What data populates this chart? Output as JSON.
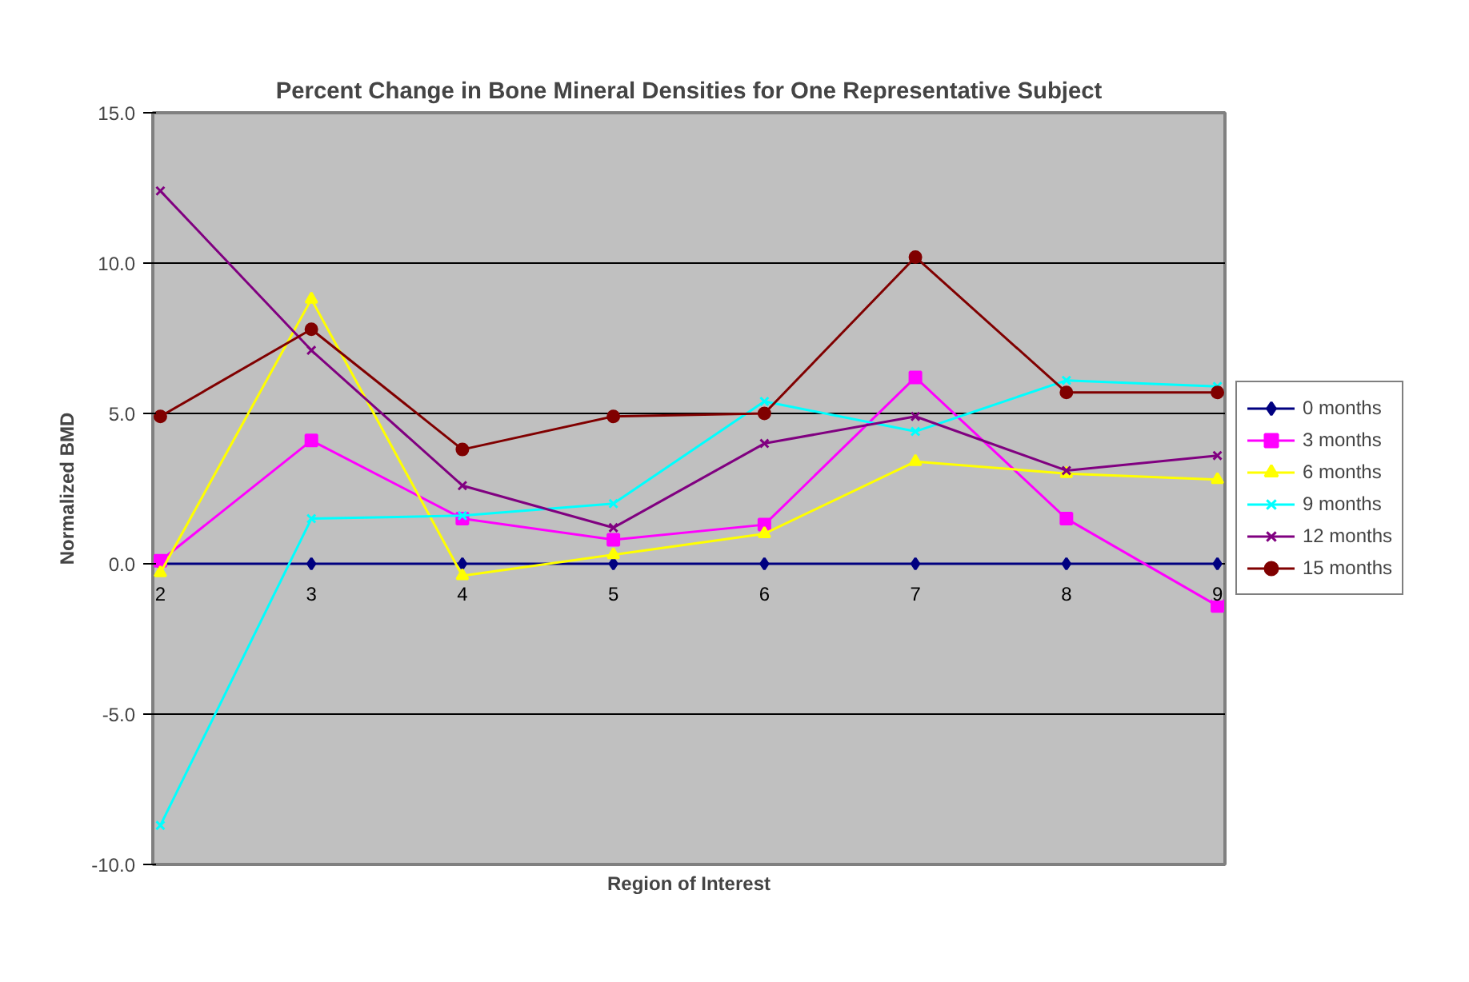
{
  "chart_data": {
    "type": "line",
    "title": "Percent Change in Bone Mineral Densities for One Representative Subject",
    "xlabel": "Region of Interest",
    "ylabel": "Normalized BMD",
    "categories": [
      "2",
      "3",
      "4",
      "5",
      "6",
      "7",
      "8",
      "9"
    ],
    "ylim": [
      -10,
      15
    ],
    "yticks": [
      {
        "value": -10,
        "label": "-10.0"
      },
      {
        "value": -5,
        "label": "-5.0"
      },
      {
        "value": 0,
        "label": "0.0"
      },
      {
        "value": 5,
        "label": "5.0"
      },
      {
        "value": 10,
        "label": "10.0"
      },
      {
        "value": 15,
        "label": "15.0"
      }
    ],
    "grid": "y",
    "legend": "right",
    "line_style": "solid",
    "series": [
      {
        "name": "0 months",
        "color": "#000080",
        "marker": "diamond",
        "values": [
          0,
          0,
          0,
          0,
          0,
          0,
          0,
          0
        ]
      },
      {
        "name": "3 months",
        "color": "#ff00ff",
        "marker": "square",
        "values": [
          0.1,
          4.1,
          1.5,
          0.8,
          1.3,
          6.2,
          1.5,
          -1.4
        ]
      },
      {
        "name": "6 months",
        "color": "#ffff00",
        "marker": "triangle",
        "values": [
          -0.3,
          8.8,
          -0.4,
          0.3,
          1.0,
          3.4,
          3.0,
          2.8
        ]
      },
      {
        "name": "9 months",
        "color": "#00ffff",
        "marker": "cross",
        "values": [
          -8.7,
          1.5,
          1.6,
          2.0,
          5.4,
          4.4,
          6.1,
          5.9
        ]
      },
      {
        "name": "12 months",
        "color": "#800080",
        "marker": "cross",
        "values": [
          12.4,
          7.1,
          2.6,
          1.2,
          4.0,
          4.9,
          3.1,
          3.6
        ]
      },
      {
        "name": "15 months",
        "color": "#800000",
        "marker": "circle",
        "values": [
          4.9,
          7.8,
          3.8,
          4.9,
          5.0,
          10.2,
          5.7,
          5.7
        ]
      }
    ]
  }
}
